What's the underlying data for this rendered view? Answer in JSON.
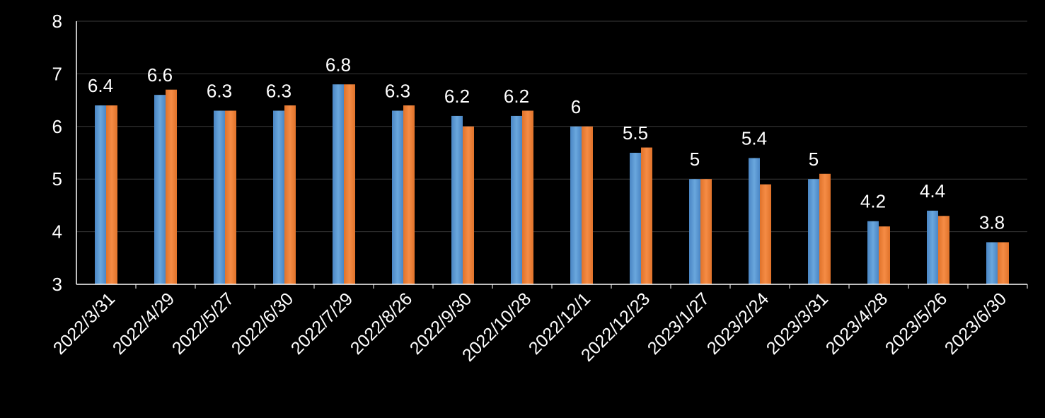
{
  "chart_data": {
    "type": "bar",
    "title": "",
    "xlabel": "",
    "ylabel": "",
    "ylim": [
      3,
      8
    ],
    "yticks": [
      3,
      4,
      5,
      6,
      7,
      8
    ],
    "grid": true,
    "categories": [
      "2022/3/31",
      "2022/4/29",
      "2022/5/27",
      "2022/6/30",
      "2022/7/29",
      "2022/8/26",
      "2022/9/30",
      "2022/10/28",
      "2022/12/1",
      "2022/12/23",
      "2023/1/27",
      "2023/2/24",
      "2023/3/31",
      "2023/4/28",
      "2023/5/26",
      "2023/6/30"
    ],
    "series": [
      {
        "color": "#5b9bd5",
        "values": [
          6.4,
          6.6,
          6.3,
          6.3,
          6.8,
          6.3,
          6.2,
          6.2,
          6.0,
          5.5,
          5.0,
          5.4,
          5.0,
          4.2,
          4.4,
          3.8
        ]
      },
      {
        "color": "#ed7d31",
        "values": [
          6.4,
          6.7,
          6.3,
          6.4,
          6.8,
          6.4,
          6.0,
          6.3,
          6.0,
          5.6,
          5.0,
          4.9,
          5.1,
          4.1,
          4.3,
          3.8
        ]
      }
    ],
    "data_labels": [
      "6.4",
      "6.6",
      "6.3",
      "6.3",
      "6.8",
      "6.3",
      "6.2",
      "6.2",
      "6",
      "5.5",
      "5",
      "5.4",
      "5",
      "4.2",
      "4.4",
      "3.8"
    ]
  }
}
